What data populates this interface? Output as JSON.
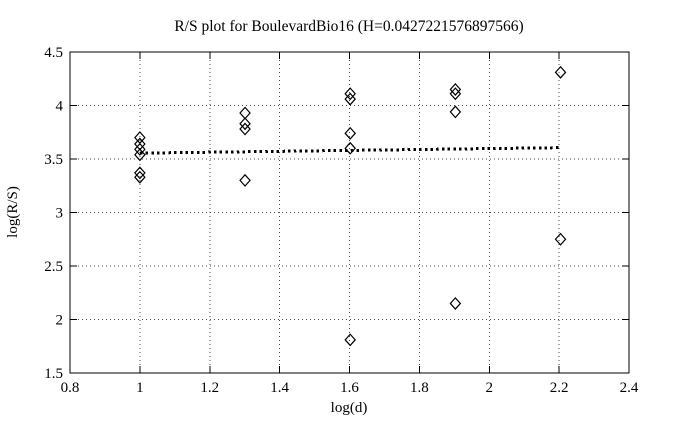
{
  "chart_data": {
    "type": "scatter",
    "title": "R/S plot for BoulevardBio16 (H=0.0427221576897566)",
    "xlabel": "log(d)",
    "ylabel": "log(R/S)",
    "hurst_exponent": "0.0427221576897566",
    "xlim": [
      0.8,
      2.4
    ],
    "ylim": [
      1.5,
      4.5
    ],
    "xticks": {
      "values": [
        0.8,
        1,
        1.2,
        1.4,
        1.6,
        1.8,
        2,
        2.2,
        2.4
      ],
      "labels": [
        "0.8",
        "1",
        "1.2",
        "1.4",
        "1.6",
        "1.8",
        "2",
        "2.2",
        "2.4"
      ]
    },
    "yticks": {
      "values": [
        1.5,
        2,
        2.5,
        3,
        3.5,
        4,
        4.5
      ],
      "labels": [
        "1.5",
        "2",
        "2.5",
        "3",
        "3.5",
        "4",
        "4.5"
      ]
    },
    "grid": "dotted",
    "legend": "none",
    "marker": {
      "shape": "open-diamond",
      "color": "#000000"
    },
    "points": [
      [
        1.0,
        3.7
      ],
      [
        1.0,
        3.64
      ],
      [
        1.0,
        3.59
      ],
      [
        1.0,
        3.54
      ],
      [
        1.0,
        3.37
      ],
      [
        1.0,
        3.33
      ],
      [
        1.301,
        3.93
      ],
      [
        1.301,
        3.83
      ],
      [
        1.301,
        3.78
      ],
      [
        1.301,
        3.3
      ],
      [
        1.602,
        4.11
      ],
      [
        1.602,
        4.06
      ],
      [
        1.602,
        3.74
      ],
      [
        1.602,
        3.6
      ],
      [
        1.602,
        1.81
      ],
      [
        1.903,
        4.15
      ],
      [
        1.903,
        4.11
      ],
      [
        1.903,
        3.94
      ],
      [
        1.903,
        2.15
      ],
      [
        2.204,
        4.31
      ],
      [
        2.204,
        2.75
      ]
    ],
    "fit_line": {
      "slope": 0.0427221576897566,
      "intercept": 3.512,
      "x_start": 1.0,
      "x_end": 2.204,
      "style": "thick-dotted"
    },
    "colors": {
      "foreground": "#000000",
      "grid": "#4a4a4a",
      "background": "#ffffff"
    }
  }
}
